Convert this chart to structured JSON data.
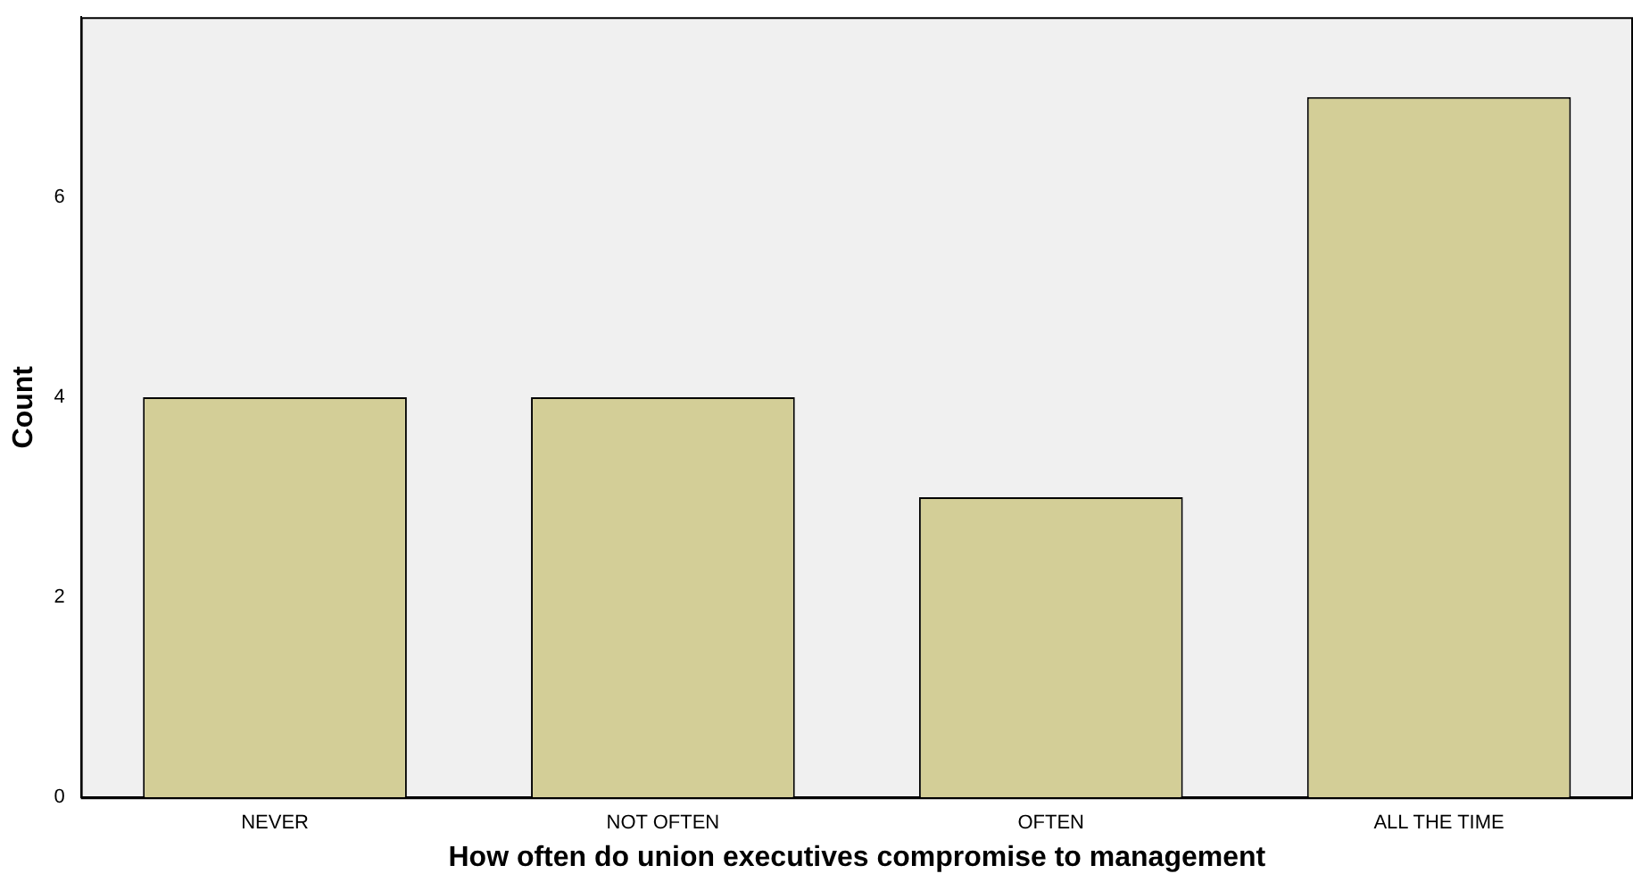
{
  "chart_data": {
    "type": "bar",
    "xlabel": "How often do union executives compromise to management",
    "ylabel": "Count",
    "categories": [
      "NEVER",
      "NOT OFTEN",
      "OFTEN",
      "ALL THE TIME"
    ],
    "values": [
      4,
      4,
      3,
      7
    ],
    "color": "#d3ce97",
    "ylim": [
      0,
      7.8
    ],
    "yticks": [
      0,
      2,
      4,
      6
    ],
    "grid": false,
    "legend": false
  }
}
